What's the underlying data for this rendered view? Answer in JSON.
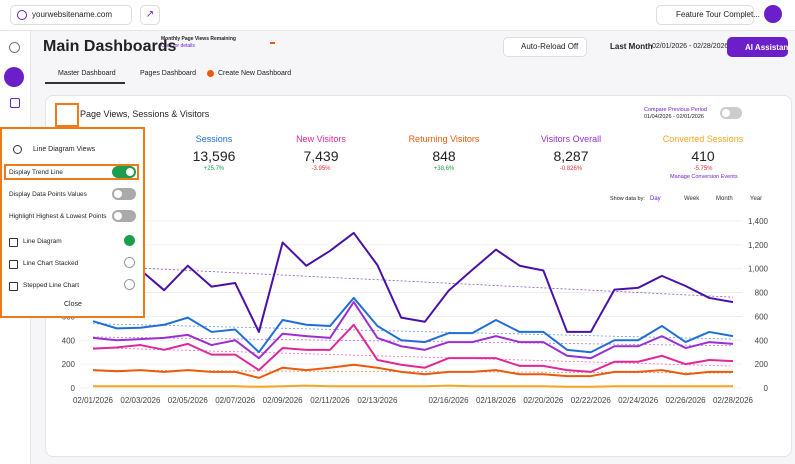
{
  "topbar": {
    "site": "yourwebsitename.com",
    "page_views_title": "Monthly Page Views Remaining",
    "page_views_link": "Click for details",
    "feature_tour": "Feature Tour Complet..."
  },
  "header": {
    "title": "Main Dashboards",
    "auto_reload": "Auto-Reload Off",
    "period": "Last Month",
    "date_range": "02/01/2026 - 02/28/2026",
    "ai_button": "AI Assistant"
  },
  "tabs": [
    "Master Dashboard",
    "Pages Dashboard",
    "Create New Dashboard"
  ],
  "card": {
    "title": "Page Views, Sessions & Visitors",
    "compare_label": "Compare Previous Period",
    "compare_range": "01/04/2026 - 02/01/2026",
    "show_data_by": "Show data by:",
    "granularity": [
      "Day",
      "Week",
      "Month",
      "Year"
    ],
    "manage_link": "Manage Conversion Events"
  },
  "stats": [
    {
      "value": "13,596",
      "change": "+25.7%"
    },
    {
      "value": "7,439",
      "change": "-3.95%"
    },
    {
      "value": "848",
      "change": "+38.6%"
    },
    {
      "value": "8,287",
      "change": "-0.826%"
    },
    {
      "value": "410",
      "change": "-5.75%"
    }
  ],
  "popup": {
    "title": "Line Diagram Views",
    "toggles": [
      {
        "label": "Display Trend Line",
        "on": true
      },
      {
        "label": "Display Data Points Values",
        "on": false
      },
      {
        "label": "Highlight Highest & Lowest Points",
        "on": false
      }
    ],
    "views": [
      {
        "label": "Line Diagram",
        "selected": true
      },
      {
        "label": "Line Chart Stacked",
        "selected": false
      },
      {
        "label": "Stepped Line Chart",
        "selected": false
      }
    ],
    "close": "Close"
  },
  "chart_data": {
    "type": "line",
    "categories": [
      "02/01/2026",
      null,
      "02/03/2026",
      null,
      "02/05/2026",
      null,
      "02/07/2026",
      null,
      "02/09/2026",
      null,
      "02/11/2026",
      null,
      "02/13/2026",
      null,
      null,
      "02/16/2026",
      null,
      "02/18/2026",
      null,
      "02/20/2026",
      null,
      "02/22/2026",
      null,
      "02/24/2026",
      null,
      "02/26/2026",
      null,
      "02/28/2026"
    ],
    "series": [
      {
        "name": "Page Views",
        "color": "#4b10a8",
        "values": [
          1150,
          1100,
          990,
          820,
          1025,
          850,
          880,
          470,
          1220,
          1025,
          1150,
          1300,
          1030,
          590,
          555,
          815,
          990,
          1160,
          1025,
          985,
          470,
          470,
          825,
          840,
          940,
          855,
          755,
          720
        ]
      },
      {
        "name": "Sessions",
        "color": "#1f6fd6",
        "values": [
          560,
          500,
          505,
          530,
          590,
          470,
          490,
          300,
          570,
          530,
          520,
          755,
          520,
          400,
          385,
          460,
          460,
          570,
          470,
          470,
          320,
          300,
          400,
          400,
          520,
          385,
          470,
          435
        ]
      },
      {
        "name": "New Visitors",
        "color": "#e0279a",
        "values": [
          330,
          340,
          360,
          320,
          370,
          280,
          280,
          150,
          335,
          320,
          320,
          530,
          235,
          195,
          170,
          250,
          250,
          250,
          185,
          185,
          150,
          135,
          220,
          220,
          270,
          200,
          235,
          225
        ]
      },
      {
        "name": "Returning Visitors",
        "color": "#ea5a0b",
        "values": [
          150,
          140,
          150,
          135,
          150,
          135,
          135,
          85,
          170,
          150,
          170,
          195,
          170,
          135,
          115,
          135,
          135,
          150,
          115,
          115,
          100,
          100,
          135,
          135,
          150,
          115,
          135,
          135
        ]
      },
      {
        "name": "Visitors Overall",
        "color": "#9b2fd0",
        "values": [
          420,
          400,
          410,
          420,
          445,
          360,
          400,
          250,
          455,
          435,
          420,
          720,
          420,
          350,
          320,
          385,
          385,
          435,
          385,
          385,
          270,
          250,
          350,
          350,
          435,
          335,
          385,
          370
        ]
      },
      {
        "name": "Converted Sessions",
        "color": "#f5a623",
        "values": [
          15,
          15,
          15,
          15,
          15,
          15,
          15,
          10,
          15,
          20,
          15,
          15,
          15,
          15,
          15,
          20,
          15,
          15,
          15,
          15,
          10,
          10,
          15,
          15,
          15,
          15,
          15,
          15
        ]
      }
    ],
    "ylim": [
      0,
      1400
    ],
    "yticks": [
      0,
      200,
      400,
      600,
      800,
      {
        "value": 1000,
        "label": "1,000"
      },
      {
        "value": 1200,
        "label": "1,200"
      },
      {
        "value": 1400,
        "label": "1,400"
      }
    ],
    "grid": true,
    "trend_line": true
  }
}
